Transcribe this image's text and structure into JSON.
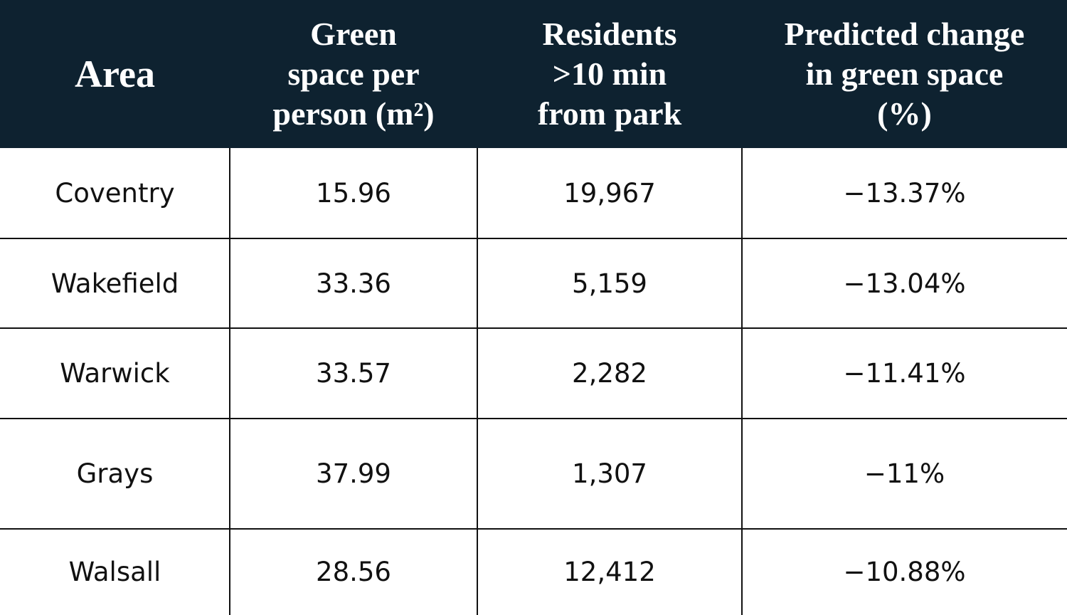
{
  "table": {
    "header": [
      "Area",
      "Green space per person (m²)",
      "Residents >10 min from park",
      "Predicted change in green space (%)"
    ],
    "rows": [
      [
        "Coventry",
        "15.96",
        "19,967",
        "−13.37%"
      ],
      [
        "Wakefield",
        "33.36",
        "5,159",
        "−13.04%"
      ],
      [
        "Warwick",
        "33.57",
        "2,282",
        "−11.41%"
      ],
      [
        "Grays",
        "37.99",
        "1,307",
        "−11%"
      ],
      [
        "Walsall",
        "28.56",
        "12,412",
        "−10.88%"
      ]
    ]
  }
}
